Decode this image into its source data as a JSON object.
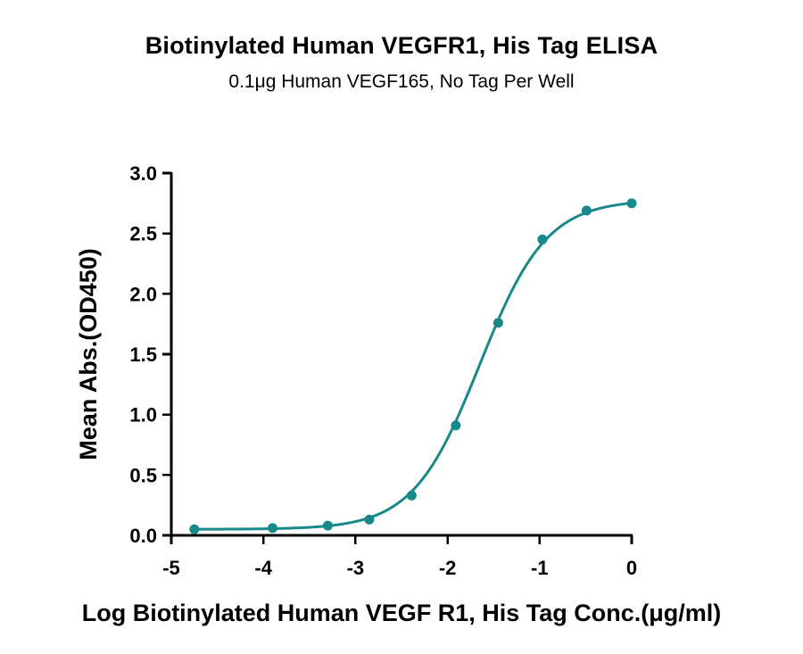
{
  "chart_data": {
    "type": "line",
    "title": "Biotinylated Human VEGFR1, His Tag ELISA",
    "subtitle": "0.1μg Human VEGF165, No Tag Per Well",
    "xlabel": "Log Biotinylated Human VEGF R1, His Tag Conc.(μg/ml)",
    "ylabel": "Mean Abs.(OD450)",
    "xlim": [
      -5,
      0
    ],
    "ylim": [
      0,
      3.0
    ],
    "x_ticks": [
      -5,
      -4,
      -3,
      -2,
      -1,
      0
    ],
    "x_tick_labels": [
      "-5",
      "-4",
      "-3",
      "-2",
      "-1",
      "0"
    ],
    "y_ticks": [
      0,
      0.5,
      1.0,
      1.5,
      2.0,
      2.5,
      3.0
    ],
    "y_tick_labels": [
      "0.0",
      "0.5",
      "1.0",
      "1.5",
      "2.0",
      "2.5",
      "3.0"
    ],
    "grid": false,
    "legend": "none",
    "series": [
      {
        "points": [
          {
            "x": -4.75,
            "y": 0.05
          },
          {
            "x": -3.9,
            "y": 0.06
          },
          {
            "x": -3.3,
            "y": 0.08
          },
          {
            "x": -2.85,
            "y": 0.13
          },
          {
            "x": -2.39,
            "y": 0.33
          },
          {
            "x": -1.91,
            "y": 0.91
          },
          {
            "x": -1.45,
            "y": 1.76
          },
          {
            "x": -0.97,
            "y": 2.45
          },
          {
            "x": -0.49,
            "y": 2.69
          },
          {
            "x": 0.0,
            "y": 2.75
          }
        ],
        "fit": "four-parameter logistic",
        "fit_params": {
          "bottom": 0.05,
          "top": 2.78,
          "logEC50": -1.65,
          "hill": 1.2
        },
        "color": "#17898a"
      }
    ]
  }
}
